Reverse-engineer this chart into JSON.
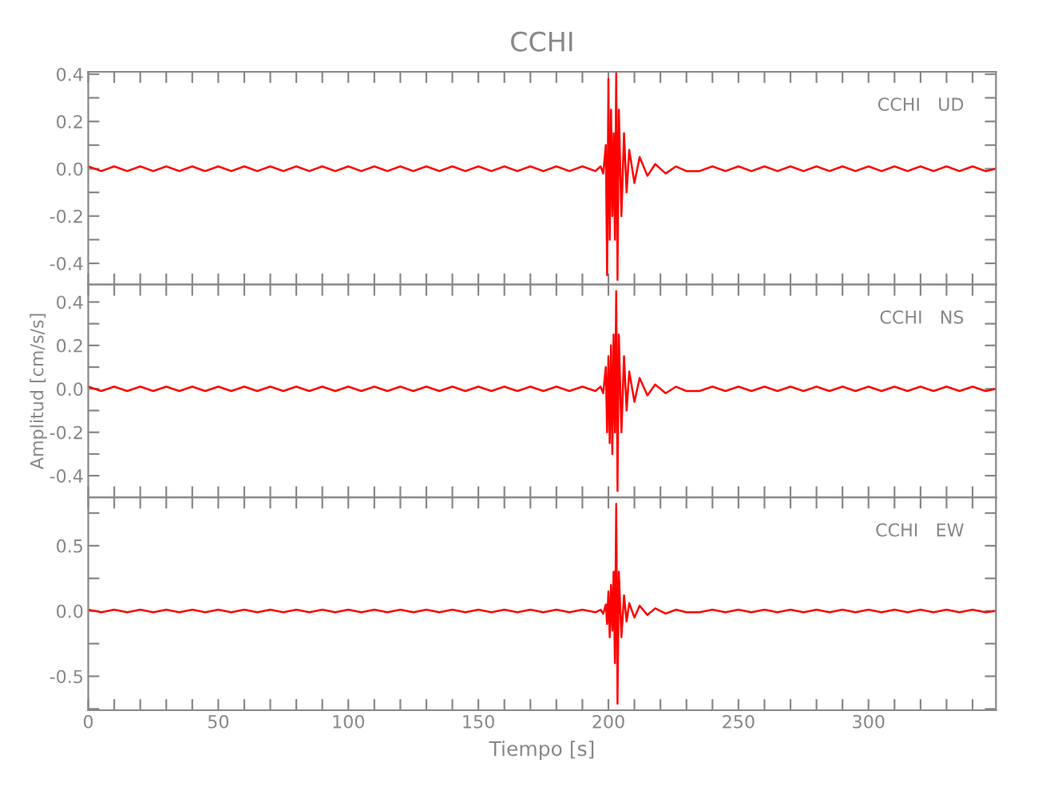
{
  "chart_data": [
    {
      "type": "line",
      "title": "CCHI",
      "annotations": [
        "CCHI   UD"
      ],
      "tick_labels": "y",
      "grid": false,
      "legend": false,
      "xlim": [
        0,
        349
      ],
      "ylim": [
        -0.49,
        0.41
      ],
      "xticks": [
        0,
        {
          "value": 10,
          "label": null
        },
        {
          "value": 20,
          "label": null
        },
        {
          "value": 30,
          "label": null
        },
        {
          "value": 40,
          "label": null
        },
        50,
        {
          "value": 60,
          "label": null
        },
        {
          "value": 70,
          "label": null
        },
        {
          "value": 80,
          "label": null
        },
        {
          "value": 90,
          "label": null
        },
        100,
        {
          "value": 110,
          "label": null
        },
        {
          "value": 120,
          "label": null
        },
        {
          "value": 130,
          "label": null
        },
        {
          "value": 140,
          "label": null
        },
        150,
        {
          "value": 160,
          "label": null
        },
        {
          "value": 170,
          "label": null
        },
        {
          "value": 180,
          "label": null
        },
        {
          "value": 190,
          "label": null
        },
        200,
        {
          "value": 210,
          "label": null
        },
        {
          "value": 220,
          "label": null
        },
        {
          "value": 230,
          "label": null
        },
        {
          "value": 240,
          "label": null
        },
        250,
        {
          "value": 260,
          "label": null
        },
        {
          "value": 270,
          "label": null
        },
        {
          "value": 280,
          "label": null
        },
        {
          "value": 290,
          "label": null
        },
        300,
        {
          "value": 310,
          "label": null
        },
        {
          "value": 320,
          "label": null
        },
        {
          "value": 330,
          "label": null
        },
        {
          "value": 340,
          "label": null
        }
      ],
      "yticks": [
        {
          "value": -0.4,
          "label": "-0.4"
        },
        {
          "value": -0.3,
          "label": null
        },
        {
          "value": -0.2,
          "label": "-0.2"
        },
        {
          "value": -0.1,
          "label": null
        },
        {
          "value": 0,
          "label": "0.0"
        },
        {
          "value": 0.1,
          "label": null
        },
        {
          "value": 0.2,
          "label": "0.2"
        },
        {
          "value": 0.3,
          "label": null
        },
        {
          "value": 0.4,
          "label": "0.4"
        }
      ],
      "x": [
        0,
        5,
        10,
        15,
        20,
        25,
        30,
        35,
        40,
        45,
        50,
        55,
        60,
        65,
        70,
        75,
        80,
        85,
        90,
        95,
        100,
        105,
        110,
        115,
        120,
        125,
        130,
        135,
        140,
        145,
        150,
        155,
        160,
        165,
        170,
        175,
        180,
        185,
        190,
        195,
        197,
        198,
        199,
        199.5,
        200,
        200.5,
        201,
        201.5,
        202,
        202.5,
        203,
        203.5,
        204,
        205,
        206,
        207,
        208,
        210,
        212,
        215,
        218,
        222,
        226,
        230,
        235,
        240,
        245,
        250,
        255,
        260,
        265,
        270,
        275,
        280,
        285,
        290,
        295,
        300,
        305,
        310,
        315,
        320,
        325,
        330,
        335,
        340,
        345,
        349
      ],
      "series": [
        {
          "color": "#ff0000",
          "values": [
            0.01,
            -0.01,
            0.01,
            -0.01,
            0.01,
            -0.01,
            0.01,
            -0.01,
            0.01,
            -0.01,
            0.01,
            -0.01,
            0.01,
            -0.01,
            0.01,
            -0.01,
            0.01,
            -0.01,
            0.01,
            -0.01,
            0.01,
            -0.01,
            0.01,
            -0.01,
            0.01,
            -0.01,
            0.01,
            -0.01,
            0.01,
            -0.01,
            0.01,
            -0.01,
            0.01,
            -0.01,
            0.01,
            -0.01,
            0.01,
            -0.01,
            0.01,
            -0.01,
            0.01,
            -0.02,
            0.1,
            -0.45,
            0.38,
            -0.3,
            0.25,
            -0.2,
            0.15,
            -0.3,
            0.41,
            -0.47,
            0.25,
            -0.2,
            0.15,
            -0.1,
            0.08,
            -0.06,
            0.05,
            -0.03,
            0.02,
            -0.02,
            0.01,
            -0.01,
            -0.01,
            0.01,
            -0.01,
            0.01,
            -0.01,
            0.01,
            -0.01,
            0.01,
            -0.01,
            0.01,
            -0.01,
            0.01,
            -0.01,
            0.01,
            -0.01,
            0.01,
            -0.01,
            0.01,
            -0.01,
            0.01,
            -0.01,
            0.01,
            -0.01,
            0
          ]
        }
      ]
    },
    {
      "type": "line",
      "ylabel": "Amplitud [cm/s/s]",
      "annotations": [
        "CCHI   NS"
      ],
      "tick_labels": "y",
      "grid": false,
      "legend": false,
      "xlim": [
        0,
        349
      ],
      "ylim": [
        -0.5,
        0.48
      ],
      "xticks": [
        0,
        {
          "value": 10,
          "label": null
        },
        {
          "value": 20,
          "label": null
        },
        {
          "value": 30,
          "label": null
        },
        {
          "value": 40,
          "label": null
        },
        50,
        {
          "value": 60,
          "label": null
        },
        {
          "value": 70,
          "label": null
        },
        {
          "value": 80,
          "label": null
        },
        {
          "value": 90,
          "label": null
        },
        100,
        {
          "value": 110,
          "label": null
        },
        {
          "value": 120,
          "label": null
        },
        {
          "value": 130,
          "label": null
        },
        {
          "value": 140,
          "label": null
        },
        150,
        {
          "value": 160,
          "label": null
        },
        {
          "value": 170,
          "label": null
        },
        {
          "value": 180,
          "label": null
        },
        {
          "value": 190,
          "label": null
        },
        200,
        {
          "value": 210,
          "label": null
        },
        {
          "value": 220,
          "label": null
        },
        {
          "value": 230,
          "label": null
        },
        {
          "value": 240,
          "label": null
        },
        250,
        {
          "value": 260,
          "label": null
        },
        {
          "value": 270,
          "label": null
        },
        {
          "value": 280,
          "label": null
        },
        {
          "value": 290,
          "label": null
        },
        300,
        {
          "value": 310,
          "label": null
        },
        {
          "value": 320,
          "label": null
        },
        {
          "value": 330,
          "label": null
        },
        {
          "value": 340,
          "label": null
        }
      ],
      "yticks": [
        {
          "value": -0.4,
          "label": "-0.4"
        },
        {
          "value": -0.3,
          "label": null
        },
        {
          "value": -0.2,
          "label": "-0.2"
        },
        {
          "value": -0.1,
          "label": null
        },
        {
          "value": 0,
          "label": "0.0"
        },
        {
          "value": 0.1,
          "label": null
        },
        {
          "value": 0.2,
          "label": "0.2"
        },
        {
          "value": 0.3,
          "label": null
        },
        {
          "value": 0.4,
          "label": "0.4"
        }
      ],
      "x": [
        0,
        5,
        10,
        15,
        20,
        25,
        30,
        35,
        40,
        45,
        50,
        55,
        60,
        65,
        70,
        75,
        80,
        85,
        90,
        95,
        100,
        105,
        110,
        115,
        120,
        125,
        130,
        135,
        140,
        145,
        150,
        155,
        160,
        165,
        170,
        175,
        180,
        185,
        190,
        195,
        197,
        198,
        199,
        199.5,
        200,
        200.5,
        201,
        201.5,
        202,
        202.5,
        203,
        203.5,
        204,
        205,
        206,
        207,
        208,
        210,
        212,
        215,
        218,
        222,
        226,
        230,
        235,
        240,
        245,
        250,
        255,
        260,
        265,
        270,
        275,
        280,
        285,
        290,
        295,
        300,
        305,
        310,
        315,
        320,
        325,
        330,
        335,
        340,
        345,
        349
      ],
      "series": [
        {
          "color": "#ff0000",
          "values": [
            0.01,
            -0.01,
            0.01,
            -0.01,
            0.01,
            -0.01,
            0.01,
            -0.01,
            0.01,
            -0.01,
            0.01,
            -0.01,
            0.01,
            -0.01,
            0.01,
            -0.01,
            0.01,
            -0.01,
            0.01,
            -0.01,
            0.01,
            -0.01,
            0.01,
            -0.01,
            0.01,
            -0.01,
            0.01,
            -0.01,
            0.01,
            -0.01,
            0.01,
            -0.01,
            0.01,
            -0.01,
            0.01,
            -0.01,
            0.01,
            -0.01,
            0.01,
            -0.01,
            0.01,
            -0.02,
            0.1,
            -0.2,
            0.15,
            -0.25,
            0.2,
            -0.3,
            0.25,
            -0.2,
            0.45,
            -0.47,
            0.25,
            -0.2,
            0.15,
            -0.1,
            0.08,
            -0.06,
            0.05,
            -0.03,
            0.02,
            -0.02,
            0.01,
            -0.01,
            -0.01,
            0.01,
            -0.01,
            0.01,
            -0.01,
            0.01,
            -0.01,
            0.01,
            -0.01,
            0.01,
            -0.01,
            0.01,
            -0.01,
            0.01,
            -0.01,
            0.01,
            -0.01,
            0.01,
            -0.01,
            0.01,
            -0.01,
            0.01,
            -0.01,
            0
          ]
        }
      ]
    },
    {
      "type": "line",
      "xlabel": "Tiempo [s]",
      "annotations": [
        "CCHI   EW"
      ],
      "grid": false,
      "legend": false,
      "xlim": [
        0,
        349
      ],
      "ylim": [
        -0.76,
        0.87
      ],
      "xticks": [
        0,
        {
          "value": 10,
          "label": null
        },
        {
          "value": 20,
          "label": null
        },
        {
          "value": 30,
          "label": null
        },
        {
          "value": 40,
          "label": null
        },
        50,
        {
          "value": 60,
          "label": null
        },
        {
          "value": 70,
          "label": null
        },
        {
          "value": 80,
          "label": null
        },
        {
          "value": 90,
          "label": null
        },
        100,
        {
          "value": 110,
          "label": null
        },
        {
          "value": 120,
          "label": null
        },
        {
          "value": 130,
          "label": null
        },
        {
          "value": 140,
          "label": null
        },
        150,
        {
          "value": 160,
          "label": null
        },
        {
          "value": 170,
          "label": null
        },
        {
          "value": 180,
          "label": null
        },
        {
          "value": 190,
          "label": null
        },
        200,
        {
          "value": 210,
          "label": null
        },
        {
          "value": 220,
          "label": null
        },
        {
          "value": 230,
          "label": null
        },
        {
          "value": 240,
          "label": null
        },
        250,
        {
          "value": 260,
          "label": null
        },
        {
          "value": 270,
          "label": null
        },
        {
          "value": 280,
          "label": null
        },
        {
          "value": 290,
          "label": null
        },
        300,
        {
          "value": 310,
          "label": null
        },
        {
          "value": 320,
          "label": null
        },
        {
          "value": 330,
          "label": null
        },
        {
          "value": 340,
          "label": null
        }
      ],
      "yticks": [
        {
          "value": -0.75,
          "label": null
        },
        {
          "value": -0.5,
          "label": "-0.5"
        },
        {
          "value": -0.25,
          "label": null
        },
        {
          "value": 0,
          "label": "0.0"
        },
        {
          "value": 0.25,
          "label": null
        },
        {
          "value": 0.5,
          "label": "0.5"
        },
        {
          "value": 0.75,
          "label": null
        }
      ],
      "x": [
        0,
        5,
        10,
        15,
        20,
        25,
        30,
        35,
        40,
        45,
        50,
        55,
        60,
        65,
        70,
        75,
        80,
        85,
        90,
        95,
        100,
        105,
        110,
        115,
        120,
        125,
        130,
        135,
        140,
        145,
        150,
        155,
        160,
        165,
        170,
        175,
        180,
        185,
        190,
        195,
        197,
        198,
        199,
        199.5,
        200,
        200.5,
        201,
        201.5,
        202,
        202.5,
        203,
        203.5,
        204,
        205,
        206,
        207,
        208,
        210,
        212,
        215,
        218,
        222,
        226,
        230,
        235,
        240,
        245,
        250,
        255,
        260,
        265,
        270,
        275,
        280,
        285,
        290,
        295,
        300,
        305,
        310,
        315,
        320,
        325,
        330,
        335,
        340,
        345,
        349
      ],
      "series": [
        {
          "color": "#ff0000",
          "values": [
            0.01,
            -0.01,
            0.01,
            -0.01,
            0.01,
            -0.01,
            0.01,
            -0.01,
            0.01,
            -0.01,
            0.01,
            -0.01,
            0.01,
            -0.01,
            0.01,
            -0.01,
            0.01,
            -0.01,
            0.01,
            -0.01,
            0.01,
            -0.01,
            0.01,
            -0.01,
            0.01,
            -0.01,
            0.01,
            -0.01,
            0.01,
            -0.01,
            0.01,
            -0.01,
            0.01,
            -0.01,
            0.01,
            -0.01,
            0.01,
            -0.01,
            0.01,
            -0.01,
            0.01,
            -0.02,
            0.05,
            -0.1,
            0.15,
            -0.2,
            0.2,
            -0.15,
            0.3,
            -0.4,
            0.82,
            -0.71,
            0.3,
            -0.2,
            0.12,
            -0.08,
            0.06,
            -0.05,
            0.04,
            -0.03,
            0.02,
            -0.02,
            0.01,
            -0.01,
            -0.01,
            0.01,
            -0.01,
            0.01,
            -0.01,
            0.01,
            -0.01,
            0.01,
            -0.01,
            0.01,
            -0.01,
            0.01,
            -0.01,
            0.01,
            -0.01,
            0.01,
            -0.01,
            0.01,
            -0.01,
            0.01,
            -0.01,
            0.01,
            -0.01,
            0
          ]
        }
      ]
    }
  ]
}
